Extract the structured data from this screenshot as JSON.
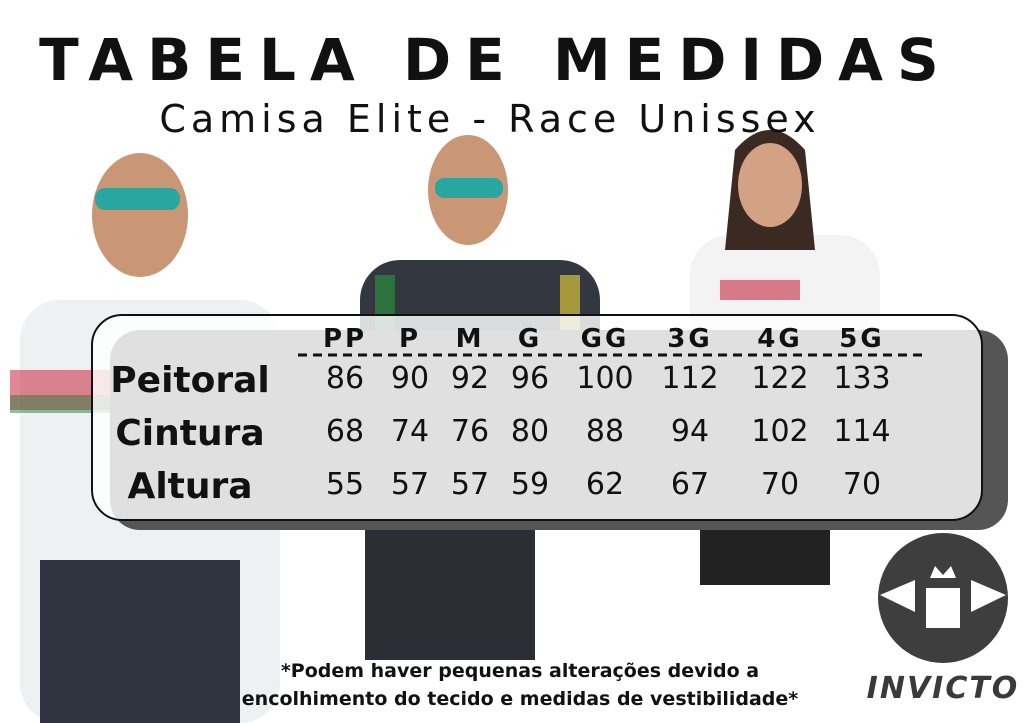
{
  "header": {
    "title": "TABELA DE MEDIDAS",
    "subtitle": "Camisa Elite - Race Unissex"
  },
  "table": {
    "columns": [
      "PP",
      "P",
      "M",
      "G",
      "GG",
      "3G",
      "4G",
      "5G"
    ],
    "rows": [
      {
        "label": "Peitoral",
        "values": [
          86,
          90,
          92,
          96,
          100,
          112,
          122,
          133
        ]
      },
      {
        "label": "Cintura",
        "values": [
          68,
          74,
          76,
          80,
          88,
          94,
          102,
          114
        ]
      },
      {
        "label": "Altura",
        "values": [
          55,
          57,
          57,
          59,
          62,
          67,
          70,
          70
        ]
      }
    ]
  },
  "footnote": [
    "*Podem haver pequenas alterações devido a",
    "encolhimento do tecido e medidas de vestibilidade*"
  ],
  "brand": "INVICTO"
}
